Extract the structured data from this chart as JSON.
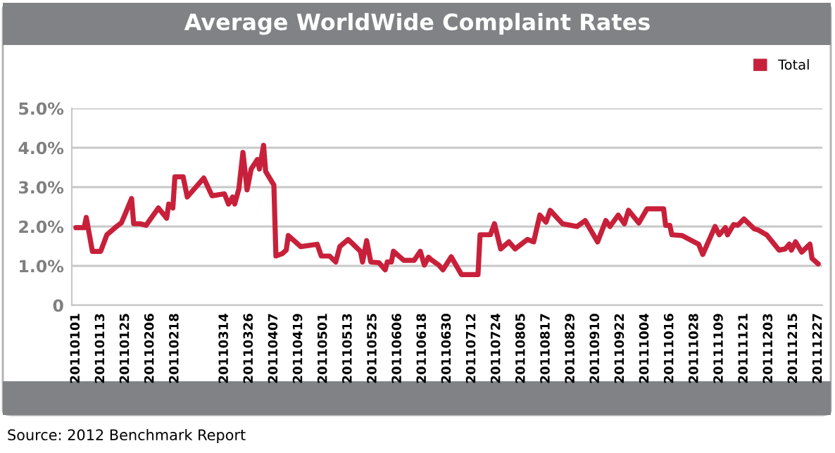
{
  "chart_data": {
    "type": "line",
    "title": "Average WorldWide Complaint Rates",
    "x": [
      "2011-01-01",
      "2011-01-05",
      "2011-01-06",
      "2011-01-09",
      "2011-01-13",
      "2011-01-16",
      "2011-01-20",
      "2011-01-23",
      "2011-01-25",
      "2011-01-28",
      "2011-01-29",
      "2011-02-01",
      "2011-02-04",
      "2011-02-10",
      "2011-02-14",
      "2011-02-15",
      "2011-02-17",
      "2011-02-18",
      "2011-02-22",
      "2011-02-24",
      "2011-03-04",
      "2011-03-08",
      "2011-03-14",
      "2011-03-16",
      "2011-03-18",
      "2011-03-19",
      "2011-03-21",
      "2011-03-23",
      "2011-03-25",
      "2011-03-27",
      "2011-03-30",
      "2011-03-31",
      "2011-04-02",
      "2011-04-03",
      "2011-04-07",
      "2011-04-08",
      "2011-04-11",
      "2011-04-13",
      "2011-04-14",
      "2011-04-20",
      "2011-04-28",
      "2011-04-30",
      "2011-05-04",
      "2011-05-07",
      "2011-05-09",
      "2011-05-13",
      "2011-05-19",
      "2011-05-20",
      "2011-05-22",
      "2011-05-24",
      "2011-05-28",
      "2011-05-31",
      "2011-06-01",
      "2011-06-03",
      "2011-06-04",
      "2011-06-09",
      "2011-06-14",
      "2011-06-17",
      "2011-06-19",
      "2011-06-21",
      "2011-06-22",
      "2011-06-26",
      "2011-06-28",
      "2011-07-02",
      "2011-07-07",
      "2011-07-15",
      "2011-07-16",
      "2011-07-21",
      "2011-07-23",
      "2011-07-26",
      "2011-07-30",
      "2011-08-02",
      "2011-08-08",
      "2011-08-11",
      "2011-08-14",
      "2011-08-17",
      "2011-08-19",
      "2011-08-25",
      "2011-09-01",
      "2011-09-05",
      "2011-09-11",
      "2011-09-15",
      "2011-09-17",
      "2011-09-21",
      "2011-09-24",
      "2011-09-26",
      "2011-10-01",
      "2011-10-05",
      "2011-10-13",
      "2011-10-14",
      "2011-10-16",
      "2011-10-17",
      "2011-10-22",
      "2011-10-30",
      "2011-11-01",
      "2011-11-07",
      "2011-11-09",
      "2011-11-12",
      "2011-11-13",
      "2011-11-16",
      "2011-11-18",
      "2011-11-21",
      "2011-11-26",
      "2011-11-28",
      "2011-12-02",
      "2011-12-08",
      "2011-12-11",
      "2011-12-13",
      "2011-12-14",
      "2011-12-16",
      "2011-12-19",
      "2011-12-23",
      "2011-12-24",
      "2011-12-27"
    ],
    "series": [
      {
        "name": "Total",
        "color": "#c8203a",
        "values": [
          1.97,
          1.97,
          2.23,
          1.37,
          1.37,
          1.79,
          1.97,
          2.09,
          2.33,
          2.71,
          2.07,
          2.07,
          2.03,
          2.47,
          2.21,
          2.57,
          2.47,
          3.26,
          3.26,
          2.75,
          3.23,
          2.78,
          2.83,
          2.57,
          2.75,
          2.57,
          2.95,
          3.88,
          2.93,
          3.46,
          3.7,
          3.46,
          4.06,
          3.4,
          3.05,
          1.25,
          1.31,
          1.4,
          1.77,
          1.49,
          1.55,
          1.25,
          1.25,
          1.1,
          1.49,
          1.67,
          1.37,
          1.1,
          1.64,
          1.1,
          1.08,
          0.9,
          1.1,
          1.1,
          1.37,
          1.14,
          1.14,
          1.37,
          1.02,
          1.22,
          1.17,
          1.02,
          0.9,
          1.23,
          0.78,
          0.78,
          1.79,
          1.79,
          2.07,
          1.43,
          1.61,
          1.43,
          1.67,
          1.61,
          2.29,
          2.11,
          2.41,
          2.07,
          2.0,
          2.15,
          1.61,
          2.15,
          2.0,
          2.29,
          2.07,
          2.41,
          2.09,
          2.45,
          2.45,
          2.03,
          2.03,
          1.79,
          1.77,
          1.55,
          1.29,
          2.0,
          1.79,
          1.97,
          1.79,
          2.05,
          2.03,
          2.19,
          1.94,
          1.91,
          1.79,
          1.4,
          1.43,
          1.55,
          1.4,
          1.61,
          1.35,
          1.55,
          1.19,
          1.05
        ]
      }
    ],
    "xlim": [
      "2010-12-30",
      "2011-12-29"
    ],
    "xticks": [
      {
        "value": "2011-01-01",
        "label": "20110101"
      },
      {
        "value": "2011-01-13",
        "label": "20110113"
      },
      {
        "value": "2011-01-25",
        "label": "20110125"
      },
      {
        "value": "2011-02-06",
        "label": "20110206"
      },
      {
        "value": "2011-02-18",
        "label": "20110218"
      },
      {
        "value": "2011-03-14",
        "label": "20110314"
      },
      {
        "value": "2011-03-26",
        "label": "20110326"
      },
      {
        "value": "2011-04-07",
        "label": "20110407"
      },
      {
        "value": "2011-04-19",
        "label": "20110419"
      },
      {
        "value": "2011-05-01",
        "label": "20110501"
      },
      {
        "value": "2011-05-13",
        "label": "20110513"
      },
      {
        "value": "2011-05-25",
        "label": "20110525"
      },
      {
        "value": "2011-06-06",
        "label": "20110606"
      },
      {
        "value": "2011-06-18",
        "label": "20110618"
      },
      {
        "value": "2011-06-30",
        "label": "20110630"
      },
      {
        "value": "2011-07-12",
        "label": "20110712"
      },
      {
        "value": "2011-07-24",
        "label": "20110724"
      },
      {
        "value": "2011-08-05",
        "label": "20110805"
      },
      {
        "value": "2011-08-17",
        "label": "20110817"
      },
      {
        "value": "2011-08-29",
        "label": "20110829"
      },
      {
        "value": "2011-09-10",
        "label": "20110910"
      },
      {
        "value": "2011-09-22",
        "label": "20110922"
      },
      {
        "value": "2011-10-04",
        "label": "20111004"
      },
      {
        "value": "2011-10-16",
        "label": "20111016"
      },
      {
        "value": "2011-10-28",
        "label": "20111028"
      },
      {
        "value": "2011-11-09",
        "label": "20111109"
      },
      {
        "value": "2011-11-21",
        "label": "20111121"
      },
      {
        "value": "2011-12-03",
        "label": "20111203"
      },
      {
        "value": "2011-12-15",
        "label": "20111215"
      },
      {
        "value": "2011-12-27",
        "label": "20111227"
      }
    ],
    "ylim": [
      0,
      5
    ],
    "yticks": [
      0,
      {
        "value": 1,
        "label": "1.0%"
      },
      {
        "value": 2,
        "label": "2.0%"
      },
      {
        "value": 3,
        "label": "3.0%"
      },
      {
        "value": 4,
        "label": "4.0%"
      },
      {
        "value": 5,
        "label": "5.0%"
      }
    ],
    "grid": "y",
    "legend": "top right",
    "marker": "none",
    "line_style": "solid",
    "annotations": [
      "Source: 2012 Benchmark Report"
    ]
  }
}
